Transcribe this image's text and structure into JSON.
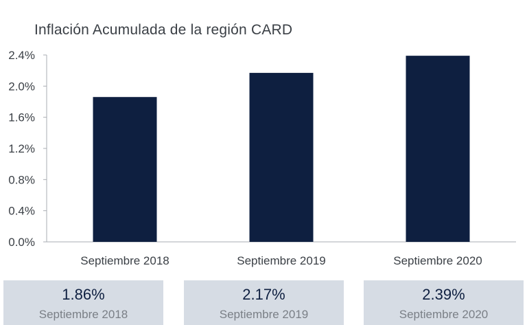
{
  "chart_data": {
    "type": "bar",
    "title": "Inflación Acumulada de la región CARD",
    "categories": [
      "Septiembre 2018",
      "Septiembre 2019",
      "Septiembre 2020"
    ],
    "values": [
      1.86,
      2.17,
      2.39
    ],
    "ylim": [
      0,
      2.4
    ],
    "yticks": [
      "0.0%",
      "0.4%",
      "0.8%",
      "1.2%",
      "1.6%",
      "2.0%",
      "2.4%"
    ],
    "grid": false,
    "bar_color": "#0e1f40"
  },
  "cards": [
    {
      "value": "1.86%",
      "label": "Septiembre 2018"
    },
    {
      "value": "2.17%",
      "label": "Septiembre 2019"
    },
    {
      "value": "2.39%",
      "label": "Septiembre 2020"
    }
  ]
}
